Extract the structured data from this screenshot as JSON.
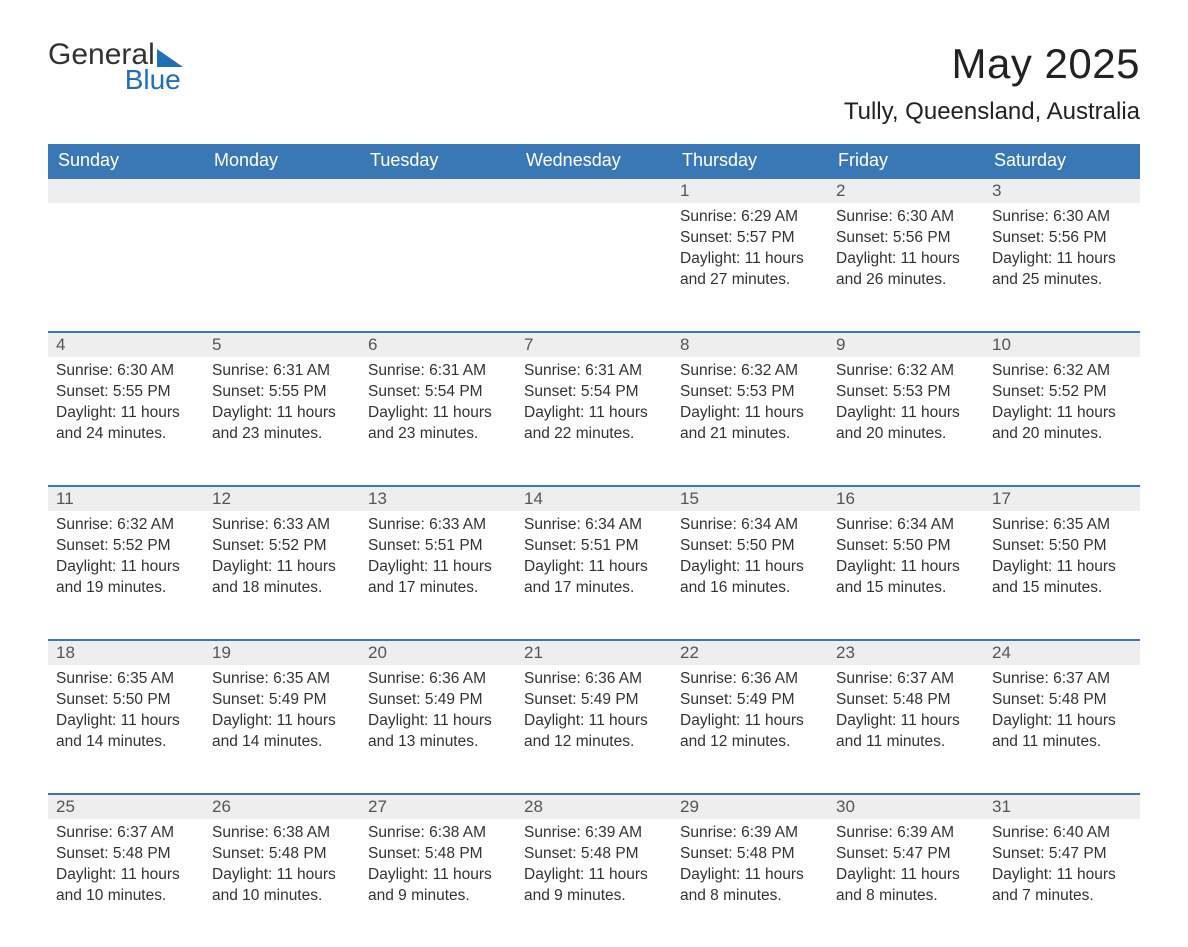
{
  "logo": {
    "line1": "General",
    "line2": "Blue"
  },
  "title": "May 2025",
  "location": "Tully, Queensland, Australia",
  "colors": {
    "header_bg": "#3a78b5",
    "header_text": "#ffffff",
    "daynum_bg": "#eeeeee",
    "daynum_text": "#555555",
    "accent": "#1f70b8",
    "body_text": "#333333",
    "page_bg": "#ffffff"
  },
  "weekdays": [
    "Sunday",
    "Monday",
    "Tuesday",
    "Wednesday",
    "Thursday",
    "Friday",
    "Saturday"
  ],
  "weeks": [
    [
      {
        "day": "",
        "lines": []
      },
      {
        "day": "",
        "lines": []
      },
      {
        "day": "",
        "lines": []
      },
      {
        "day": "",
        "lines": []
      },
      {
        "day": "1",
        "lines": [
          "Sunrise: 6:29 AM",
          "Sunset: 5:57 PM",
          "Daylight: 11 hours and 27 minutes."
        ]
      },
      {
        "day": "2",
        "lines": [
          "Sunrise: 6:30 AM",
          "Sunset: 5:56 PM",
          "Daylight: 11 hours and 26 minutes."
        ]
      },
      {
        "day": "3",
        "lines": [
          "Sunrise: 6:30 AM",
          "Sunset: 5:56 PM",
          "Daylight: 11 hours and 25 minutes."
        ]
      }
    ],
    [
      {
        "day": "4",
        "lines": [
          "Sunrise: 6:30 AM",
          "Sunset: 5:55 PM",
          "Daylight: 11 hours and 24 minutes."
        ]
      },
      {
        "day": "5",
        "lines": [
          "Sunrise: 6:31 AM",
          "Sunset: 5:55 PM",
          "Daylight: 11 hours and 23 minutes."
        ]
      },
      {
        "day": "6",
        "lines": [
          "Sunrise: 6:31 AM",
          "Sunset: 5:54 PM",
          "Daylight: 11 hours and 23 minutes."
        ]
      },
      {
        "day": "7",
        "lines": [
          "Sunrise: 6:31 AM",
          "Sunset: 5:54 PM",
          "Daylight: 11 hours and 22 minutes."
        ]
      },
      {
        "day": "8",
        "lines": [
          "Sunrise: 6:32 AM",
          "Sunset: 5:53 PM",
          "Daylight: 11 hours and 21 minutes."
        ]
      },
      {
        "day": "9",
        "lines": [
          "Sunrise: 6:32 AM",
          "Sunset: 5:53 PM",
          "Daylight: 11 hours and 20 minutes."
        ]
      },
      {
        "day": "10",
        "lines": [
          "Sunrise: 6:32 AM",
          "Sunset: 5:52 PM",
          "Daylight: 11 hours and 20 minutes."
        ]
      }
    ],
    [
      {
        "day": "11",
        "lines": [
          "Sunrise: 6:32 AM",
          "Sunset: 5:52 PM",
          "Daylight: 11 hours and 19 minutes."
        ]
      },
      {
        "day": "12",
        "lines": [
          "Sunrise: 6:33 AM",
          "Sunset: 5:52 PM",
          "Daylight: 11 hours and 18 minutes."
        ]
      },
      {
        "day": "13",
        "lines": [
          "Sunrise: 6:33 AM",
          "Sunset: 5:51 PM",
          "Daylight: 11 hours and 17 minutes."
        ]
      },
      {
        "day": "14",
        "lines": [
          "Sunrise: 6:34 AM",
          "Sunset: 5:51 PM",
          "Daylight: 11 hours and 17 minutes."
        ]
      },
      {
        "day": "15",
        "lines": [
          "Sunrise: 6:34 AM",
          "Sunset: 5:50 PM",
          "Daylight: 11 hours and 16 minutes."
        ]
      },
      {
        "day": "16",
        "lines": [
          "Sunrise: 6:34 AM",
          "Sunset: 5:50 PM",
          "Daylight: 11 hours and 15 minutes."
        ]
      },
      {
        "day": "17",
        "lines": [
          "Sunrise: 6:35 AM",
          "Sunset: 5:50 PM",
          "Daylight: 11 hours and 15 minutes."
        ]
      }
    ],
    [
      {
        "day": "18",
        "lines": [
          "Sunrise: 6:35 AM",
          "Sunset: 5:50 PM",
          "Daylight: 11 hours and 14 minutes."
        ]
      },
      {
        "day": "19",
        "lines": [
          "Sunrise: 6:35 AM",
          "Sunset: 5:49 PM",
          "Daylight: 11 hours and 14 minutes."
        ]
      },
      {
        "day": "20",
        "lines": [
          "Sunrise: 6:36 AM",
          "Sunset: 5:49 PM",
          "Daylight: 11 hours and 13 minutes."
        ]
      },
      {
        "day": "21",
        "lines": [
          "Sunrise: 6:36 AM",
          "Sunset: 5:49 PM",
          "Daylight: 11 hours and 12 minutes."
        ]
      },
      {
        "day": "22",
        "lines": [
          "Sunrise: 6:36 AM",
          "Sunset: 5:49 PM",
          "Daylight: 11 hours and 12 minutes."
        ]
      },
      {
        "day": "23",
        "lines": [
          "Sunrise: 6:37 AM",
          "Sunset: 5:48 PM",
          "Daylight: 11 hours and 11 minutes."
        ]
      },
      {
        "day": "24",
        "lines": [
          "Sunrise: 6:37 AM",
          "Sunset: 5:48 PM",
          "Daylight: 11 hours and 11 minutes."
        ]
      }
    ],
    [
      {
        "day": "25",
        "lines": [
          "Sunrise: 6:37 AM",
          "Sunset: 5:48 PM",
          "Daylight: 11 hours and 10 minutes."
        ]
      },
      {
        "day": "26",
        "lines": [
          "Sunrise: 6:38 AM",
          "Sunset: 5:48 PM",
          "Daylight: 11 hours and 10 minutes."
        ]
      },
      {
        "day": "27",
        "lines": [
          "Sunrise: 6:38 AM",
          "Sunset: 5:48 PM",
          "Daylight: 11 hours and 9 minutes."
        ]
      },
      {
        "day": "28",
        "lines": [
          "Sunrise: 6:39 AM",
          "Sunset: 5:48 PM",
          "Daylight: 11 hours and 9 minutes."
        ]
      },
      {
        "day": "29",
        "lines": [
          "Sunrise: 6:39 AM",
          "Sunset: 5:48 PM",
          "Daylight: 11 hours and 8 minutes."
        ]
      },
      {
        "day": "30",
        "lines": [
          "Sunrise: 6:39 AM",
          "Sunset: 5:47 PM",
          "Daylight: 11 hours and 8 minutes."
        ]
      },
      {
        "day": "31",
        "lines": [
          "Sunrise: 6:40 AM",
          "Sunset: 5:47 PM",
          "Daylight: 11 hours and 7 minutes."
        ]
      }
    ]
  ]
}
